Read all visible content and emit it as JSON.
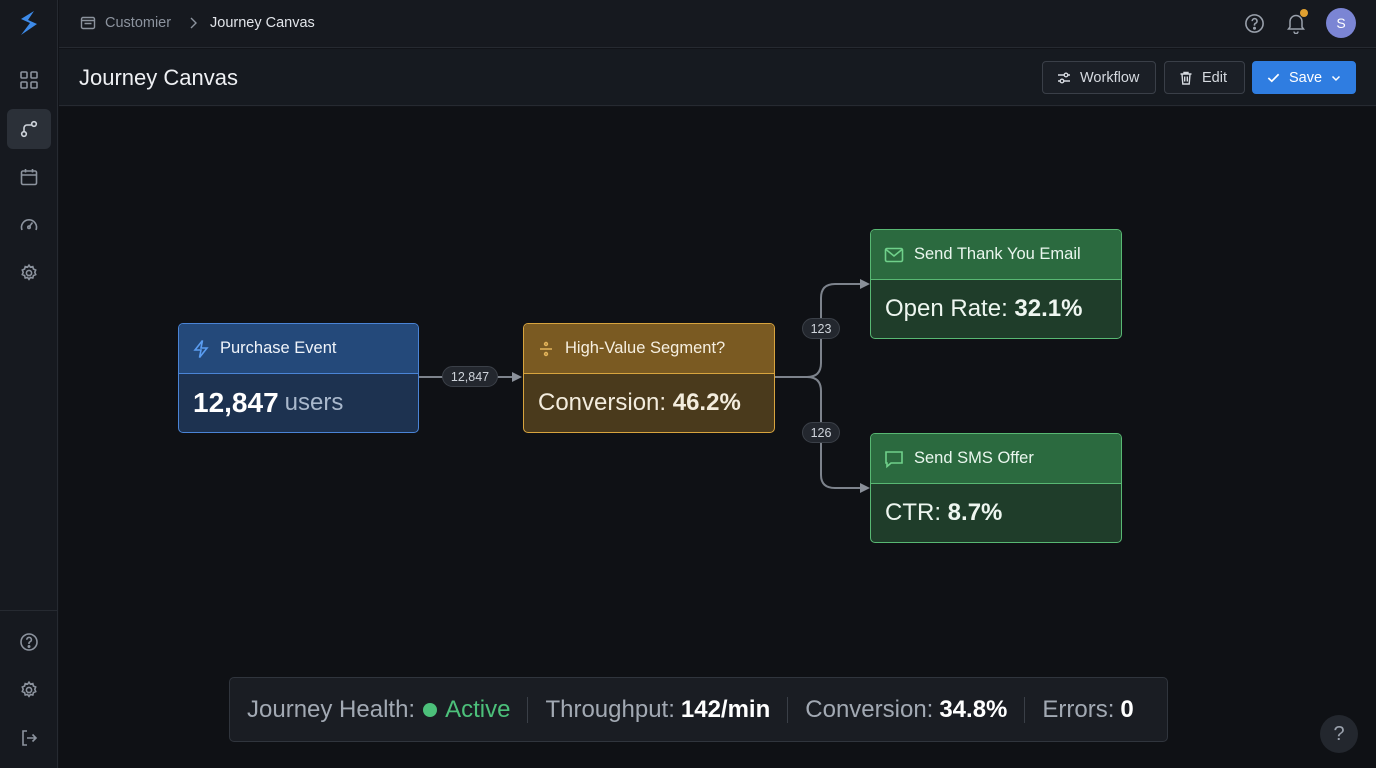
{
  "breadcrumb": {
    "parent": "Customier",
    "current": "Journey Canvas"
  },
  "user": {
    "initial": "S"
  },
  "page": {
    "title": "Journey Canvas"
  },
  "toolbar": {
    "workflow_label": "Workflow",
    "edit_label": "Edit",
    "save_label": "Save"
  },
  "nodes": {
    "purchase": {
      "title": "Purchase Event",
      "value": "12,847",
      "unit": "users"
    },
    "segment": {
      "title": "High-Value Segment?",
      "metric_label": "Conversion:",
      "metric_value": "46.2%"
    },
    "email": {
      "title": "Send Thank You Email",
      "metric_label": "Open Rate:",
      "metric_value": "32.1%"
    },
    "sms": {
      "title": "Send SMS Offer",
      "metric_label": "CTR:",
      "metric_value": "8.7%"
    }
  },
  "edges": {
    "purchase_to_segment": "12,847",
    "segment_to_email": "123",
    "segment_to_sms": "126"
  },
  "health": {
    "label": "Journey Health:",
    "status": "Active",
    "throughput_label": "Throughput:",
    "throughput_value": "142/min",
    "conversion_label": "Conversion:",
    "conversion_value": "34.8%",
    "errors_label": "Errors:",
    "errors_value": "0"
  },
  "help_fab": "?",
  "colors": {
    "accent": "#2f7de1",
    "active": "#4cc07a",
    "segment": "#d8a43e",
    "action": "#58b873",
    "trigger": "#4a84d6"
  }
}
